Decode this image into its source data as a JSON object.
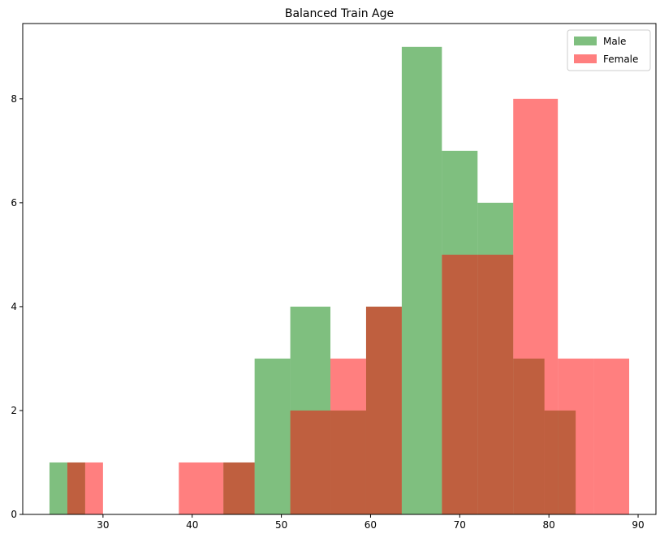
{
  "chart_data": {
    "type": "bar",
    "title": "Balanced Train Age",
    "xlabel": "",
    "ylabel": "",
    "xlim": [
      21,
      92
    ],
    "ylim": [
      0,
      9.45
    ],
    "xticks": [
      30,
      40,
      50,
      60,
      70,
      80,
      90
    ],
    "yticks": [
      0,
      2,
      4,
      6,
      8
    ],
    "grid": false,
    "legend": "top-right",
    "series": [
      {
        "name": "Male",
        "color": "#008000",
        "opacity": 0.5,
        "bins": [
          {
            "x0": 24,
            "x1": 26,
            "count": 1
          },
          {
            "x0": 26,
            "x1": 28,
            "count": 1
          },
          {
            "x0": 43.5,
            "x1": 47,
            "count": 1
          },
          {
            "x0": 47,
            "x1": 51,
            "count": 3
          },
          {
            "x0": 51,
            "x1": 55.5,
            "count": 4
          },
          {
            "x0": 55.5,
            "x1": 59.5,
            "count": 2
          },
          {
            "x0": 59.5,
            "x1": 63.5,
            "count": 4
          },
          {
            "x0": 63.5,
            "x1": 68,
            "count": 9
          },
          {
            "x0": 68,
            "x1": 72,
            "count": 7
          },
          {
            "x0": 72,
            "x1": 76,
            "count": 6
          },
          {
            "x0": 76,
            "x1": 79.5,
            "count": 3
          },
          {
            "x0": 79.5,
            "x1": 83,
            "count": 2
          }
        ]
      },
      {
        "name": "Female",
        "color": "#ff0000",
        "opacity": 0.5,
        "bins": [
          {
            "x0": 26,
            "x1": 28,
            "count": 1
          },
          {
            "x0": 28,
            "x1": 30,
            "count": 1
          },
          {
            "x0": 38.5,
            "x1": 43.5,
            "count": 1
          },
          {
            "x0": 43.5,
            "x1": 47,
            "count": 1
          },
          {
            "x0": 51,
            "x1": 55.5,
            "count": 2
          },
          {
            "x0": 55.5,
            "x1": 59.5,
            "count": 3
          },
          {
            "x0": 59.5,
            "x1": 63.5,
            "count": 4
          },
          {
            "x0": 68,
            "x1": 72,
            "count": 5
          },
          {
            "x0": 72,
            "x1": 76,
            "count": 5
          },
          {
            "x0": 76,
            "x1": 81,
            "count": 8
          },
          {
            "x0": 81,
            "x1": 85,
            "count": 3
          },
          {
            "x0": 85,
            "x1": 89,
            "count": 3
          }
        ]
      }
    ]
  }
}
